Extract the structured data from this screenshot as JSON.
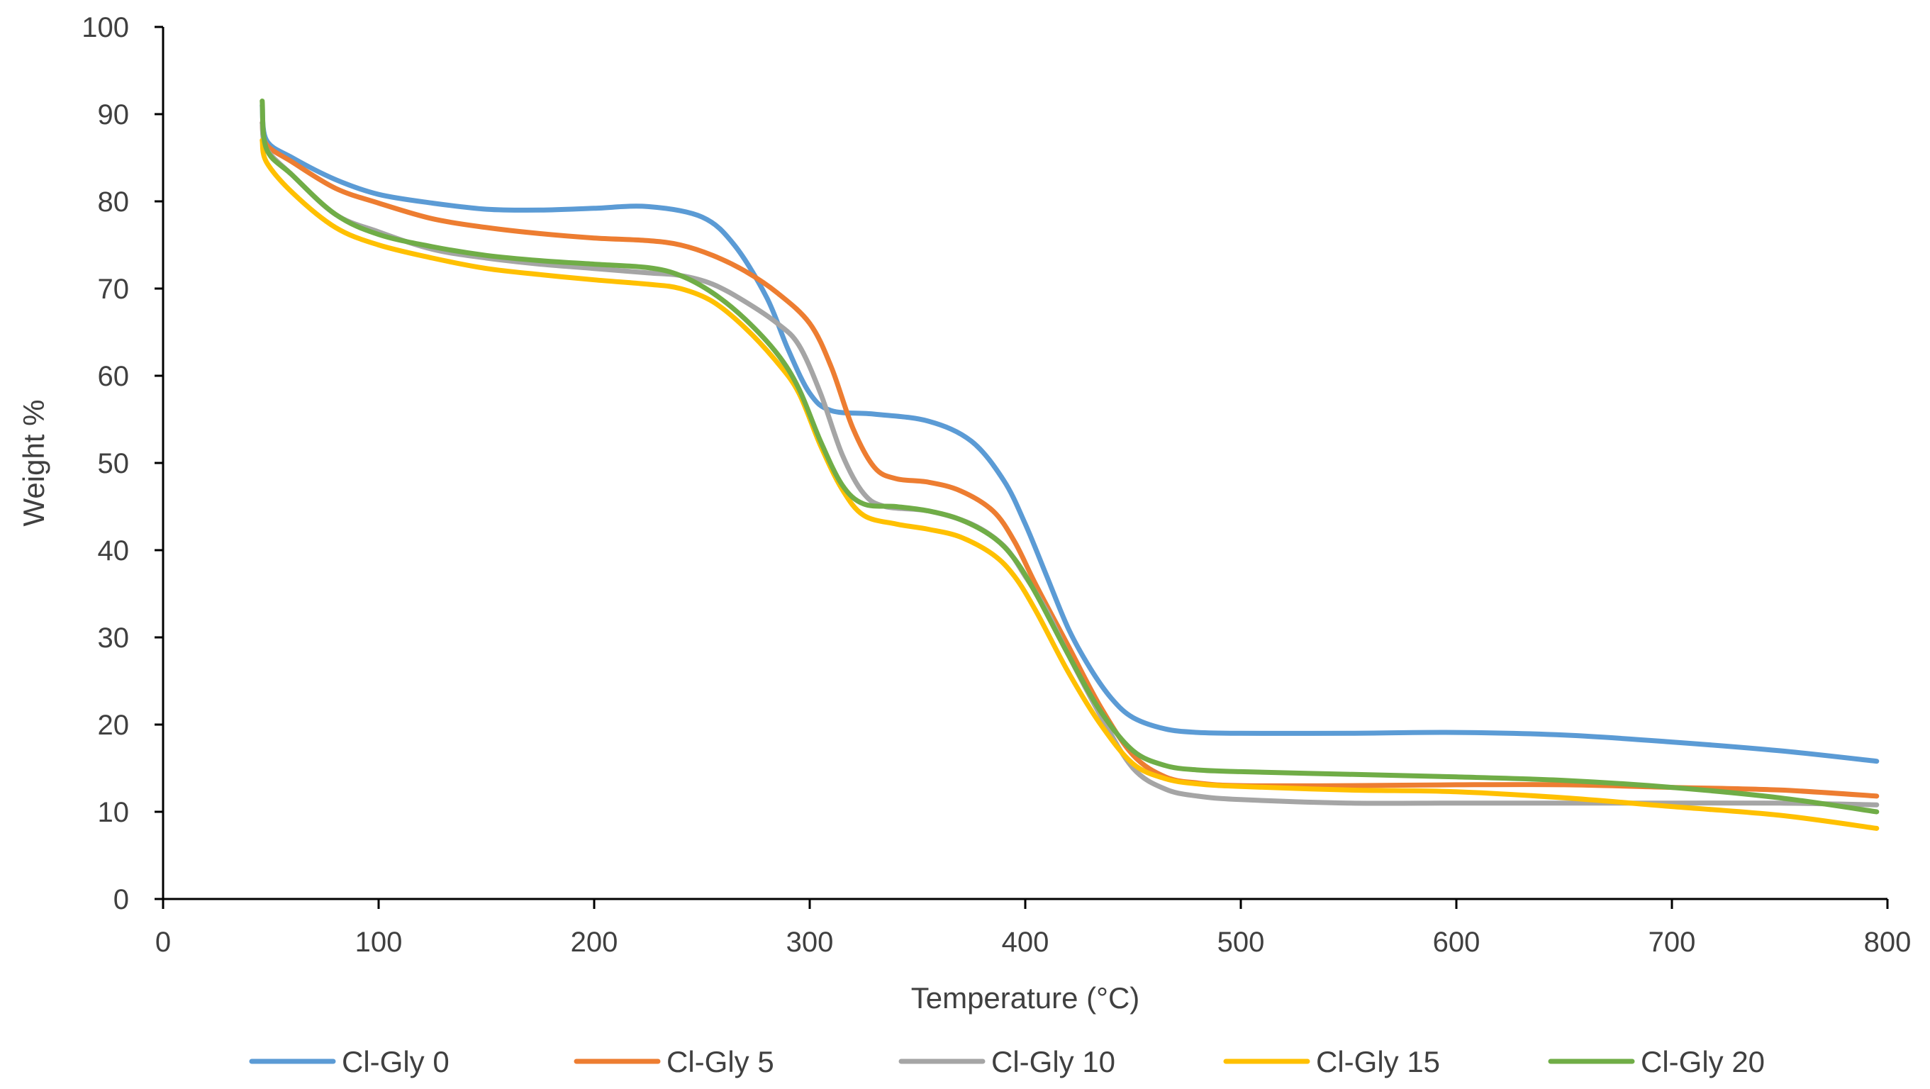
{
  "chart_data": {
    "type": "line",
    "title": "",
    "xlabel": "Temperature (°C)",
    "ylabel": "Weight %",
    "xlim": [
      0,
      800
    ],
    "ylim": [
      0,
      100
    ],
    "x_ticks": [
      "0",
      "100",
      "200",
      "300",
      "400",
      "500",
      "600",
      "700",
      "800"
    ],
    "y_ticks": [
      "0",
      "10",
      "20",
      "30",
      "40",
      "50",
      "60",
      "70",
      "80",
      "90",
      "100"
    ],
    "grid": false,
    "legend_position": "bottom",
    "series": [
      {
        "name": "Cl-Gly 0",
        "color": "#5B9BD5",
        "points": [
          [
            46,
            91
          ],
          [
            48,
            87
          ],
          [
            60,
            85
          ],
          [
            80,
            82.5
          ],
          [
            100,
            80.8
          ],
          [
            125,
            79.8
          ],
          [
            150,
            79.1
          ],
          [
            175,
            79
          ],
          [
            200,
            79.2
          ],
          [
            225,
            79.4
          ],
          [
            250,
            78.2
          ],
          [
            265,
            75
          ],
          [
            280,
            69
          ],
          [
            290,
            63
          ],
          [
            300,
            58
          ],
          [
            310,
            56
          ],
          [
            330,
            55.6
          ],
          [
            355,
            54.8
          ],
          [
            375,
            52.5
          ],
          [
            390,
            48
          ],
          [
            400,
            43
          ],
          [
            410,
            37
          ],
          [
            420,
            31
          ],
          [
            430,
            26.5
          ],
          [
            440,
            23
          ],
          [
            450,
            20.8
          ],
          [
            465,
            19.5
          ],
          [
            480,
            19.1
          ],
          [
            500,
            19
          ],
          [
            550,
            19
          ],
          [
            600,
            19.1
          ],
          [
            650,
            18.8
          ],
          [
            700,
            18
          ],
          [
            750,
            17
          ],
          [
            795,
            15.8
          ]
        ]
      },
      {
        "name": "Cl-Gly 5",
        "color": "#ED7D31",
        "points": [
          [
            46,
            89
          ],
          [
            48,
            86.5
          ],
          [
            60,
            84.5
          ],
          [
            80,
            81.5
          ],
          [
            100,
            79.8
          ],
          [
            125,
            78
          ],
          [
            150,
            77
          ],
          [
            175,
            76.3
          ],
          [
            200,
            75.8
          ],
          [
            225,
            75.5
          ],
          [
            240,
            75
          ],
          [
            255,
            73.8
          ],
          [
            270,
            72
          ],
          [
            285,
            69.5
          ],
          [
            300,
            66
          ],
          [
            310,
            61
          ],
          [
            320,
            54
          ],
          [
            330,
            49.5
          ],
          [
            340,
            48.2
          ],
          [
            355,
            47.8
          ],
          [
            370,
            46.8
          ],
          [
            385,
            44.5
          ],
          [
            395,
            41
          ],
          [
            405,
            36
          ],
          [
            420,
            29
          ],
          [
            435,
            22
          ],
          [
            450,
            16.5
          ],
          [
            465,
            14
          ],
          [
            480,
            13.3
          ],
          [
            500,
            13
          ],
          [
            550,
            13
          ],
          [
            600,
            13.1
          ],
          [
            650,
            13.1
          ],
          [
            700,
            12.8
          ],
          [
            750,
            12.5
          ],
          [
            795,
            11.8
          ]
        ]
      },
      {
        "name": "Cl-Gly 10",
        "color": "#A5A5A5",
        "points": [
          [
            46,
            89
          ],
          [
            48,
            86
          ],
          [
            60,
            83
          ],
          [
            80,
            78.5
          ],
          [
            100,
            76.5
          ],
          [
            125,
            74.5
          ],
          [
            150,
            73.5
          ],
          [
            175,
            72.8
          ],
          [
            200,
            72.3
          ],
          [
            225,
            71.8
          ],
          [
            240,
            71.5
          ],
          [
            255,
            70.5
          ],
          [
            270,
            68.5
          ],
          [
            285,
            66
          ],
          [
            295,
            63.5
          ],
          [
            305,
            58
          ],
          [
            315,
            51
          ],
          [
            325,
            46.5
          ],
          [
            335,
            45
          ],
          [
            355,
            44.5
          ],
          [
            375,
            43
          ],
          [
            390,
            40.5
          ],
          [
            400,
            37
          ],
          [
            410,
            33
          ],
          [
            420,
            28
          ],
          [
            435,
            21
          ],
          [
            450,
            15
          ],
          [
            465,
            12.6
          ],
          [
            480,
            11.8
          ],
          [
            500,
            11.4
          ],
          [
            550,
            11
          ],
          [
            600,
            11
          ],
          [
            650,
            11
          ],
          [
            700,
            11
          ],
          [
            750,
            11
          ],
          [
            795,
            10.8
          ]
        ]
      },
      {
        "name": "Cl-Gly 15",
        "color": "#FFC000",
        "points": [
          [
            46,
            87
          ],
          [
            48,
            84.5
          ],
          [
            60,
            81
          ],
          [
            80,
            77
          ],
          [
            100,
            75
          ],
          [
            125,
            73.5
          ],
          [
            150,
            72.3
          ],
          [
            175,
            71.6
          ],
          [
            200,
            71
          ],
          [
            225,
            70.5
          ],
          [
            240,
            70
          ],
          [
            255,
            68.5
          ],
          [
            270,
            65.5
          ],
          [
            285,
            61.5
          ],
          [
            295,
            58
          ],
          [
            305,
            52
          ],
          [
            315,
            47
          ],
          [
            325,
            44
          ],
          [
            340,
            43
          ],
          [
            355,
            42.4
          ],
          [
            370,
            41.5
          ],
          [
            385,
            39.5
          ],
          [
            395,
            37
          ],
          [
            405,
            33
          ],
          [
            420,
            26
          ],
          [
            435,
            20
          ],
          [
            450,
            15.5
          ],
          [
            465,
            13.8
          ],
          [
            480,
            13.2
          ],
          [
            500,
            12.9
          ],
          [
            550,
            12.5
          ],
          [
            600,
            12.3
          ],
          [
            650,
            11.6
          ],
          [
            700,
            10.6
          ],
          [
            750,
            9.6
          ],
          [
            795,
            8.1
          ]
        ]
      },
      {
        "name": "Cl-Gly 20",
        "color": "#70AD47",
        "points": [
          [
            46,
            91.5
          ],
          [
            48,
            86
          ],
          [
            60,
            83
          ],
          [
            80,
            78.5
          ],
          [
            100,
            76.2
          ],
          [
            125,
            74.8
          ],
          [
            150,
            73.8
          ],
          [
            175,
            73.2
          ],
          [
            200,
            72.8
          ],
          [
            225,
            72.4
          ],
          [
            240,
            71.5
          ],
          [
            255,
            69.5
          ],
          [
            270,
            66.5
          ],
          [
            285,
            62.5
          ],
          [
            295,
            58.5
          ],
          [
            305,
            52.5
          ],
          [
            315,
            47.5
          ],
          [
            325,
            45.3
          ],
          [
            340,
            45
          ],
          [
            355,
            44.5
          ],
          [
            370,
            43.5
          ],
          [
            385,
            41.5
          ],
          [
            395,
            39
          ],
          [
            405,
            35
          ],
          [
            420,
            28
          ],
          [
            435,
            21.5
          ],
          [
            450,
            17
          ],
          [
            465,
            15.3
          ],
          [
            480,
            14.8
          ],
          [
            500,
            14.6
          ],
          [
            550,
            14.3
          ],
          [
            600,
            14
          ],
          [
            650,
            13.6
          ],
          [
            700,
            12.8
          ],
          [
            750,
            11.6
          ],
          [
            795,
            10
          ]
        ]
      }
    ]
  }
}
